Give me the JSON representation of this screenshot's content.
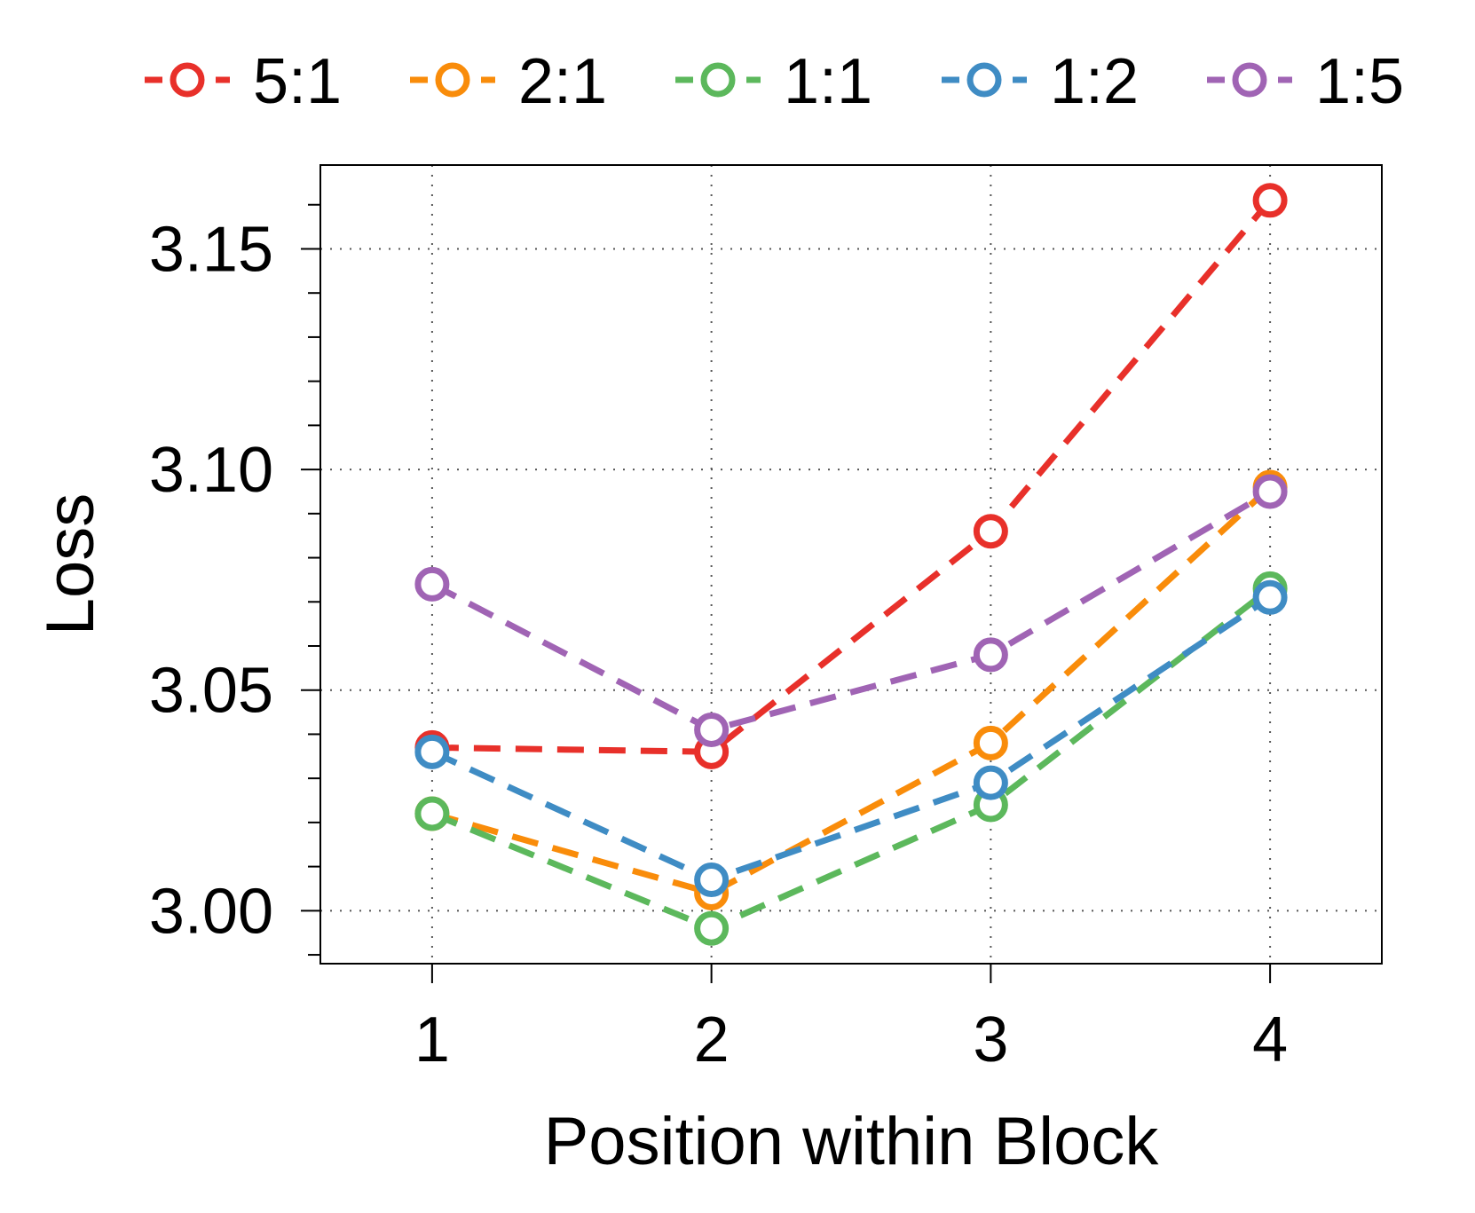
{
  "chart_data": {
    "type": "line",
    "title": "",
    "xlabel": "Position within Block",
    "ylabel": "Loss",
    "x": [
      1,
      2,
      3,
      4
    ],
    "x_tick_labels": [
      "1",
      "2",
      "3",
      "4"
    ],
    "xlim": [
      0.6,
      4.4
    ],
    "y_ticks_major": [
      3.0,
      3.05,
      3.1,
      3.15
    ],
    "y_tick_labels": [
      "3.00",
      "3.05",
      "3.10",
      "3.15"
    ],
    "y_ticks_minor": [
      2.99,
      3.01,
      3.02,
      3.03,
      3.04,
      3.06,
      3.07,
      3.08,
      3.09,
      3.11,
      3.12,
      3.13,
      3.14,
      3.16
    ],
    "ylim": [
      2.988,
      3.169
    ],
    "grid": true,
    "legend_position": "top",
    "series": [
      {
        "name": "5:1",
        "color": "#e8302a",
        "values": [
          3.037,
          3.036,
          3.086,
          3.161
        ]
      },
      {
        "name": "2:1",
        "color": "#f98c0a",
        "values": [
          3.022,
          3.004,
          3.038,
          3.096
        ]
      },
      {
        "name": "1:1",
        "color": "#5cb85c",
        "values": [
          3.022,
          2.996,
          3.024,
          3.073
        ]
      },
      {
        "name": "1:2",
        "color": "#3f8cc4",
        "values": [
          3.036,
          3.007,
          3.029,
          3.071
        ]
      },
      {
        "name": "1:5",
        "color": "#a064b4",
        "values": [
          3.074,
          3.041,
          3.058,
          3.095
        ]
      }
    ]
  }
}
